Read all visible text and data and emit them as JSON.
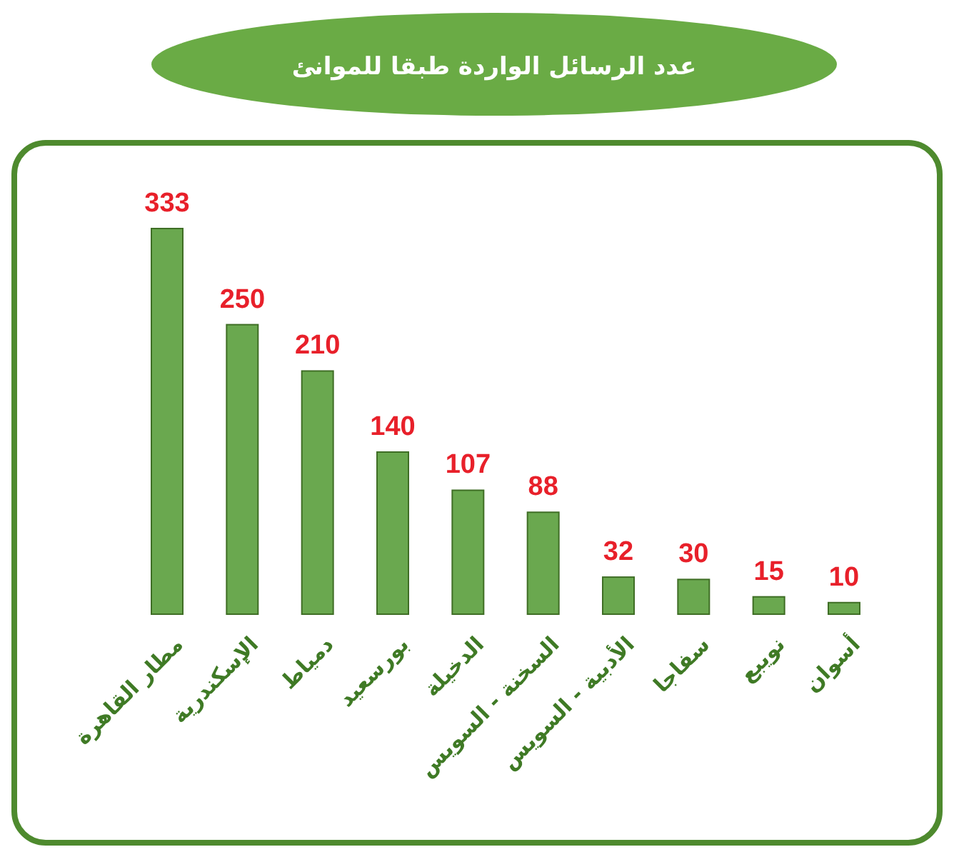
{
  "chart_data": {
    "type": "bar",
    "title": "عدد الرسائل الواردة طبقا للموانئ",
    "categories": [
      "مطار القاهرة",
      "الإسكندرية",
      "دمياط",
      "بورسعيد",
      "الدخيلة",
      "السخنة - السويس",
      "الأدبية - السويس",
      "سفاجا",
      "نويبع",
      "أسوان"
    ],
    "values": [
      333,
      250,
      210,
      140,
      107,
      88,
      32,
      30,
      15,
      10
    ],
    "color": "#6aa84f",
    "data_labels": true
  }
}
